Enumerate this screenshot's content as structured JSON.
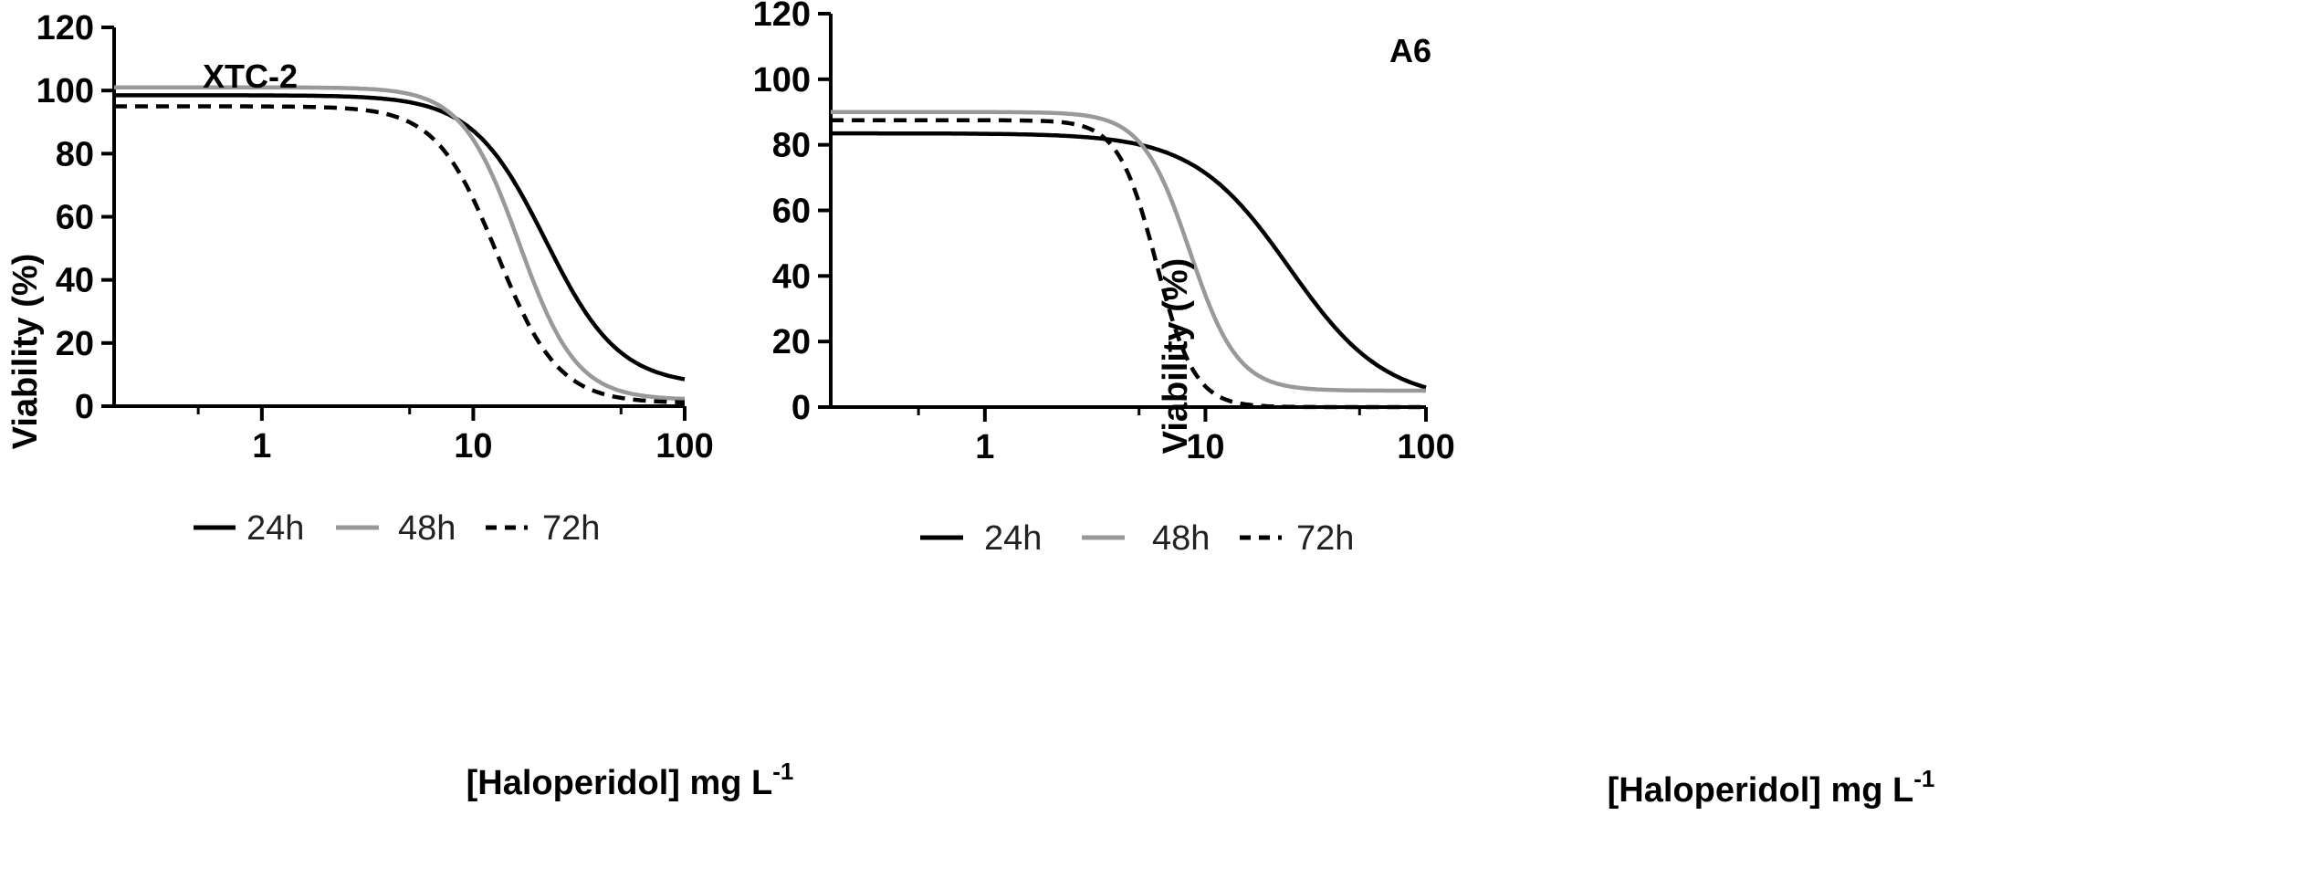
{
  "chart_data": [
    {
      "type": "line",
      "title": "XTC-2",
      "xlabel": "[Haloperidol] mg L",
      "xlabel_sup": "-1",
      "ylabel": "Viability (%)",
      "xscale": "log",
      "xlim": [
        0.2,
        100
      ],
      "ylim": [
        0,
        120
      ],
      "yticks": [
        0,
        20,
        40,
        60,
        80,
        100,
        120
      ],
      "xticks": [
        1,
        10,
        100
      ],
      "xtick_labels": [
        "1",
        "10",
        "100"
      ],
      "legend_position": "bottom",
      "series": [
        {
          "name": "24h",
          "color": "#000000",
          "style": "solid",
          "params": {
            "top": 98.5,
            "bottom": 6.5,
            "ec50": 22,
            "hill": 2.5
          },
          "points": [
            [
              0.2,
              98.5
            ],
            [
              1,
              98.5
            ],
            [
              5,
              96
            ],
            [
              10,
              88
            ],
            [
              15,
              72
            ],
            [
              20,
              57
            ],
            [
              30,
              32
            ],
            [
              50,
              14
            ],
            [
              100,
              7.5
            ]
          ]
        },
        {
          "name": "48h",
          "color": "#999999",
          "style": "solid",
          "params": {
            "top": 101,
            "bottom": 2,
            "ec50": 16.5,
            "hill": 3.2
          },
          "points": [
            [
              0.2,
              101
            ],
            [
              1,
              101
            ],
            [
              5,
              99
            ],
            [
              10,
              86
            ],
            [
              15,
              60
            ],
            [
              20,
              36
            ],
            [
              30,
              12
            ],
            [
              50,
              4
            ],
            [
              100,
              2.5
            ]
          ]
        },
        {
          "name": "72h",
          "color": "#000000",
          "style": "dashed",
          "params": {
            "top": 95,
            "bottom": 1,
            "ec50": 13,
            "hill": 3.0
          },
          "points": [
            [
              0.2,
              95
            ],
            [
              1,
              95
            ],
            [
              3,
              93
            ],
            [
              5,
              86
            ],
            [
              10,
              66
            ],
            [
              15,
              39
            ],
            [
              20,
              21
            ],
            [
              30,
              7
            ],
            [
              100,
              1
            ]
          ]
        }
      ]
    },
    {
      "type": "line",
      "title": "A6",
      "xlabel": "[Haloperidol] mg L",
      "xlabel_sup": "-1",
      "ylabel": "Viability (%)",
      "xscale": "log",
      "xlim": [
        0.2,
        100
      ],
      "ylim": [
        0,
        120
      ],
      "yticks": [
        0,
        20,
        40,
        60,
        80,
        100,
        120
      ],
      "xticks": [
        1,
        10,
        100
      ],
      "xtick_labels": [
        "1",
        "10",
        "100"
      ],
      "legend_position": "bottom",
      "series": [
        {
          "name": "24h",
          "color": "#000000",
          "style": "solid",
          "params": {
            "top": 83.5,
            "bottom": 1.5,
            "ec50": 24,
            "hill": 2.0
          },
          "points": [
            [
              0.2,
              83.5
            ],
            [
              1,
              83.5
            ],
            [
              4,
              82
            ],
            [
              10,
              72
            ],
            [
              20,
              49
            ],
            [
              30,
              30
            ],
            [
              50,
              14
            ],
            [
              100,
              5
            ]
          ]
        },
        {
          "name": "48h",
          "color": "#999999",
          "style": "solid",
          "params": {
            "top": 90,
            "bottom": 5,
            "ec50": 8.5,
            "hill": 4.0
          },
          "points": [
            [
              0.2,
              90
            ],
            [
              1,
              90
            ],
            [
              3,
              89
            ],
            [
              5,
              80
            ],
            [
              8,
              51
            ],
            [
              10,
              33
            ],
            [
              15,
              12
            ],
            [
              30,
              6
            ],
            [
              100,
              5
            ]
          ]
        },
        {
          "name": "72h",
          "color": "#000000",
          "style": "dashed",
          "params": {
            "top": 87.5,
            "bottom": 0,
            "ec50": 6,
            "hill": 5.0
          },
          "points": [
            [
              0.2,
              87.5
            ],
            [
              1,
              87.5
            ],
            [
              3,
              84
            ],
            [
              5,
              60
            ],
            [
              6,
              44
            ],
            [
              8,
              17
            ],
            [
              10,
              7
            ],
            [
              20,
              0
            ],
            [
              100,
              0
            ]
          ]
        }
      ]
    }
  ]
}
